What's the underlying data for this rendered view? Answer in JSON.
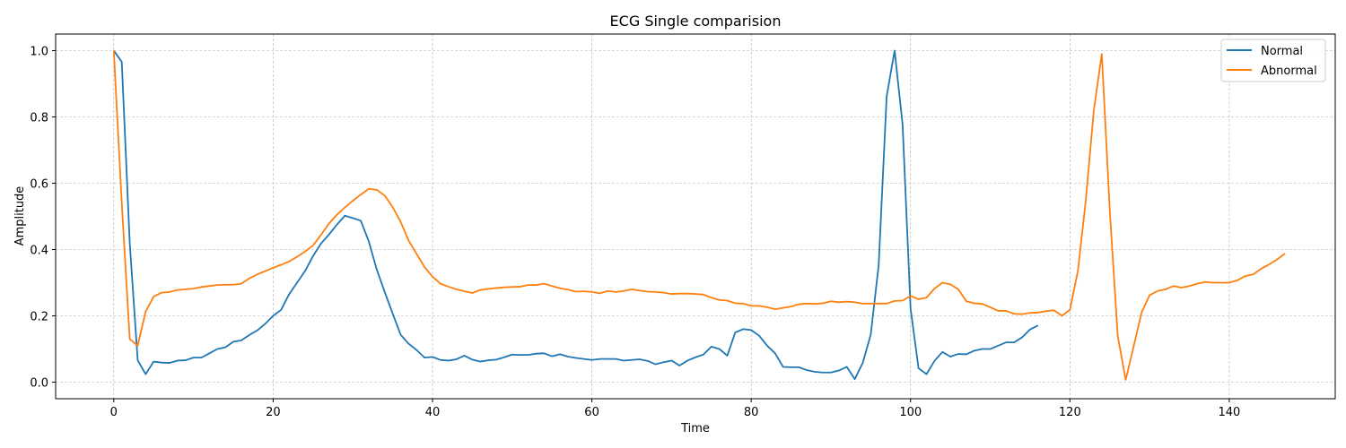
{
  "chart_data": {
    "type": "line",
    "title": "ECG Single comparision",
    "xlabel": "Time",
    "ylabel": "Amplitude",
    "xlim": [
      -7.3,
      153.3
    ],
    "ylim": [
      -0.05,
      1.05
    ],
    "xticks": [
      0,
      20,
      40,
      60,
      80,
      100,
      120,
      140
    ],
    "yticks": [
      0.0,
      0.2,
      0.4,
      0.6,
      0.8,
      1.0
    ],
    "grid": true,
    "legend_position": "top-right",
    "series": [
      {
        "name": "Normal",
        "color": "#1f77b4",
        "x0": 0,
        "values": [
          1.0,
          0.966,
          0.42,
          0.066,
          0.024,
          0.062,
          0.059,
          0.058,
          0.065,
          0.066,
          0.074,
          0.074,
          0.087,
          0.1,
          0.105,
          0.122,
          0.126,
          0.142,
          0.156,
          0.176,
          0.2,
          0.218,
          0.265,
          0.3,
          0.335,
          0.38,
          0.418,
          0.445,
          0.475,
          0.502,
          0.495,
          0.487,
          0.425,
          0.34,
          0.272,
          0.207,
          0.143,
          0.116,
          0.097,
          0.074,
          0.076,
          0.067,
          0.065,
          0.069,
          0.08,
          0.068,
          0.062,
          0.066,
          0.068,
          0.075,
          0.083,
          0.082,
          0.082,
          0.086,
          0.087,
          0.078,
          0.084,
          0.077,
          0.073,
          0.07,
          0.067,
          0.07,
          0.07,
          0.07,
          0.065,
          0.067,
          0.069,
          0.064,
          0.054,
          0.06,
          0.065,
          0.05,
          0.065,
          0.075,
          0.083,
          0.107,
          0.1,
          0.08,
          0.15,
          0.16,
          0.157,
          0.14,
          0.11,
          0.087,
          0.046,
          0.045,
          0.045,
          0.036,
          0.031,
          0.029,
          0.029,
          0.035,
          0.046,
          0.009,
          0.058,
          0.143,
          0.353,
          0.862,
          1.0,
          0.777,
          0.222,
          0.042,
          0.024,
          0.064,
          0.091,
          0.077,
          0.085,
          0.084,
          0.095,
          0.1,
          0.1,
          0.11,
          0.12,
          0.12,
          0.135,
          0.159,
          0.171
        ]
      },
      {
        "name": "Abnormal",
        "color": "#ff7f0e",
        "x0": 0,
        "values": [
          1.0,
          0.54,
          0.13,
          0.11,
          0.213,
          0.258,
          0.27,
          0.272,
          0.278,
          0.28,
          0.282,
          0.287,
          0.29,
          0.293,
          0.294,
          0.294,
          0.297,
          0.313,
          0.325,
          0.335,
          0.345,
          0.354,
          0.364,
          0.378,
          0.394,
          0.412,
          0.444,
          0.478,
          0.505,
          0.527,
          0.547,
          0.566,
          0.583,
          0.58,
          0.563,
          0.528,
          0.484,
          0.427,
          0.387,
          0.347,
          0.318,
          0.297,
          0.288,
          0.28,
          0.274,
          0.269,
          0.278,
          0.281,
          0.284,
          0.286,
          0.287,
          0.288,
          0.293,
          0.293,
          0.297,
          0.29,
          0.283,
          0.279,
          0.273,
          0.274,
          0.272,
          0.268,
          0.275,
          0.272,
          0.275,
          0.28,
          0.276,
          0.273,
          0.272,
          0.27,
          0.266,
          0.267,
          0.267,
          0.266,
          0.264,
          0.255,
          0.248,
          0.246,
          0.238,
          0.237,
          0.23,
          0.23,
          0.226,
          0.22,
          0.224,
          0.228,
          0.235,
          0.237,
          0.236,
          0.238,
          0.244,
          0.241,
          0.243,
          0.241,
          0.237,
          0.237,
          0.237,
          0.237,
          0.245,
          0.246,
          0.26,
          0.25,
          0.255,
          0.282,
          0.3,
          0.295,
          0.28,
          0.244,
          0.238,
          0.236,
          0.226,
          0.215,
          0.215,
          0.206,
          0.205,
          0.209,
          0.21,
          0.214,
          0.217,
          0.2,
          0.218,
          0.335,
          0.55,
          0.82,
          0.99,
          0.52,
          0.14,
          0.007,
          0.108,
          0.21,
          0.262,
          0.275,
          0.28,
          0.29,
          0.285,
          0.29,
          0.297,
          0.302,
          0.3,
          0.3,
          0.3,
          0.307,
          0.32,
          0.325,
          0.342,
          0.355,
          0.37,
          0.388
        ]
      }
    ]
  }
}
